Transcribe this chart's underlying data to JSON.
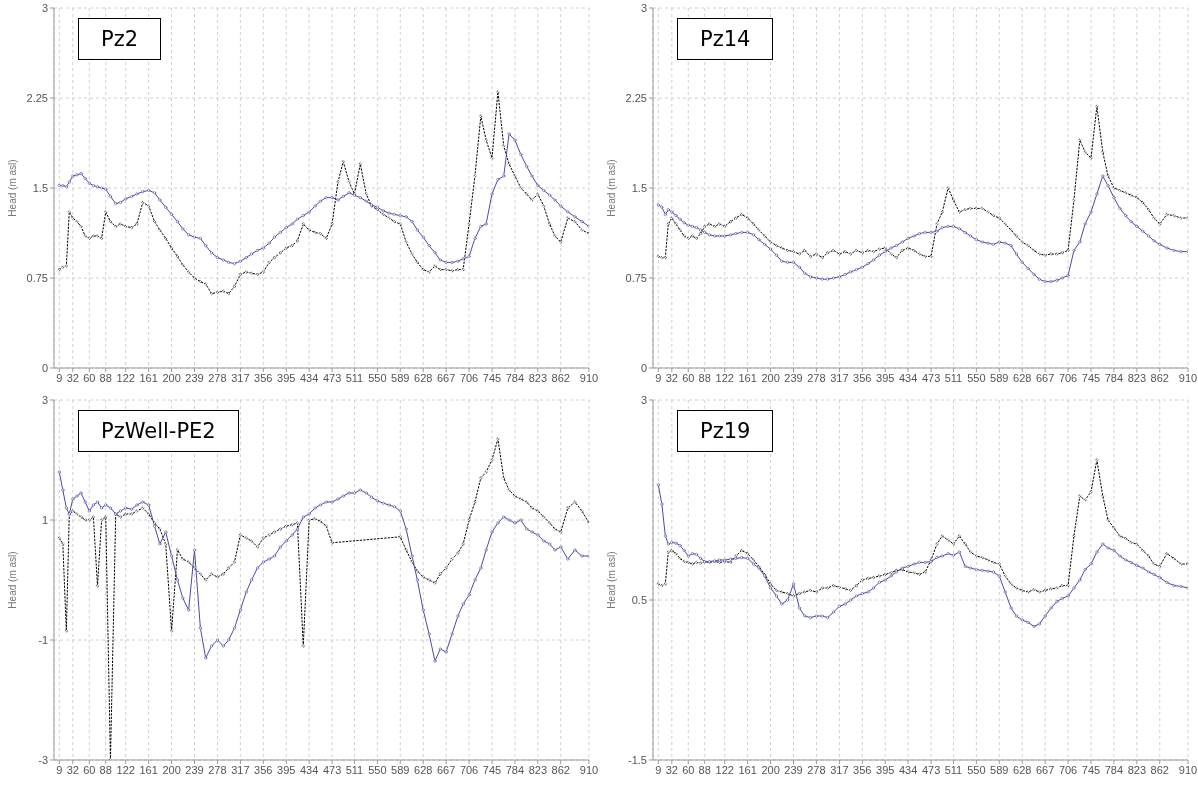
{
  "chart_data": [
    {
      "type": "line",
      "title": "Pz2",
      "ylabel": "Head (m asl)",
      "xlim": [
        0,
        910
      ],
      "xticks": [
        9,
        32,
        60,
        88,
        122,
        161,
        200,
        239,
        278,
        317,
        356,
        395,
        434,
        473,
        511,
        550,
        589,
        628,
        667,
        706,
        745,
        784,
        823,
        862,
        910
      ],
      "ylim": [
        0,
        3
      ],
      "yticks": [
        0,
        0.75,
        1.5,
        2.25,
        3
      ],
      "grid": true,
      "marker": "circle",
      "x": [
        9,
        15,
        21,
        26,
        32,
        39,
        46,
        53,
        60,
        67,
        74,
        81,
        88,
        96,
        105,
        113,
        122,
        132,
        141,
        151,
        161,
        171,
        180,
        190,
        200,
        210,
        219,
        229,
        239,
        249,
        258,
        268,
        278,
        288,
        297,
        307,
        317,
        327,
        336,
        346,
        356,
        366,
        375,
        385,
        395,
        405,
        414,
        424,
        434,
        444,
        453,
        463,
        473,
        483,
        492,
        502,
        511,
        521,
        531,
        540,
        550,
        560,
        570,
        579,
        589,
        599,
        609,
        618,
        628,
        638,
        648,
        657,
        667,
        677,
        687,
        696,
        706,
        716,
        726,
        735,
        745,
        755,
        765,
        774,
        784,
        794,
        804,
        813,
        823,
        833,
        843,
        852,
        862,
        874,
        886,
        898,
        910
      ],
      "series": [
        {
          "color": "#000000",
          "line_style": "dotted",
          "values": [
            0.82,
            0.84,
            0.85,
            1.3,
            1.25,
            1.22,
            1.18,
            1.1,
            1.08,
            1.1,
            1.1,
            1.08,
            1.3,
            1.22,
            1.18,
            1.2,
            1.18,
            1.17,
            1.2,
            1.38,
            1.35,
            1.22,
            1.15,
            1.08,
            1.0,
            0.93,
            0.86,
            0.8,
            0.75,
            0.72,
            0.7,
            0.62,
            0.63,
            0.64,
            0.62,
            0.68,
            0.78,
            0.8,
            0.79,
            0.78,
            0.8,
            0.88,
            0.92,
            0.96,
            1.0,
            1.02,
            1.06,
            1.2,
            1.15,
            1.13,
            1.12,
            1.08,
            1.2,
            1.55,
            1.72,
            1.55,
            1.45,
            1.7,
            1.45,
            1.35,
            1.32,
            1.28,
            1.25,
            1.22,
            1.2,
            1.05,
            0.95,
            0.88,
            0.82,
            0.8,
            0.85,
            0.82,
            0.82,
            0.81,
            0.82,
            0.82,
            1.2,
            1.6,
            2.1,
            1.9,
            1.75,
            2.3,
            1.85,
            1.7,
            1.6,
            1.5,
            1.45,
            1.4,
            1.45,
            1.35,
            1.2,
            1.1,
            1.05,
            1.25,
            1.22,
            1.15,
            1.12
          ]
        },
        {
          "color": "#4b4ba3",
          "line_style": "solid",
          "values": [
            1.52,
            1.52,
            1.51,
            1.55,
            1.6,
            1.61,
            1.62,
            1.58,
            1.54,
            1.52,
            1.51,
            1.5,
            1.49,
            1.43,
            1.37,
            1.38,
            1.41,
            1.43,
            1.45,
            1.47,
            1.48,
            1.46,
            1.4,
            1.34,
            1.28,
            1.22,
            1.16,
            1.11,
            1.09,
            1.08,
            1.02,
            0.96,
            0.92,
            0.9,
            0.88,
            0.87,
            0.89,
            0.92,
            0.95,
            0.98,
            1.0,
            1.04,
            1.09,
            1.13,
            1.17,
            1.2,
            1.24,
            1.27,
            1.3,
            1.35,
            1.39,
            1.42,
            1.42,
            1.4,
            1.43,
            1.46,
            1.44,
            1.42,
            1.39,
            1.36,
            1.34,
            1.31,
            1.29,
            1.28,
            1.27,
            1.26,
            1.22,
            1.15,
            1.09,
            1.02,
            0.96,
            0.9,
            0.88,
            0.88,
            0.89,
            0.91,
            0.93,
            1.08,
            1.18,
            1.2,
            1.45,
            1.57,
            1.6,
            1.95,
            1.9,
            1.78,
            1.68,
            1.6,
            1.52,
            1.48,
            1.44,
            1.4,
            1.35,
            1.3,
            1.26,
            1.22,
            1.18
          ]
        }
      ]
    },
    {
      "type": "line",
      "title": "Pz14",
      "ylabel": "Head (m asl)",
      "xlim": [
        0,
        910
      ],
      "xticks": [
        9,
        32,
        60,
        88,
        122,
        161,
        200,
        239,
        278,
        317,
        356,
        395,
        434,
        473,
        511,
        550,
        589,
        628,
        667,
        706,
        745,
        784,
        823,
        862,
        910
      ],
      "ylim": [
        0,
        3
      ],
      "yticks": [
        0,
        0.75,
        1.5,
        2.25,
        3
      ],
      "grid": true,
      "marker": "circle",
      "x": [
        9,
        15,
        21,
        26,
        32,
        39,
        46,
        53,
        60,
        67,
        74,
        81,
        88,
        96,
        105,
        113,
        122,
        132,
        141,
        151,
        161,
        171,
        180,
        190,
        200,
        210,
        219,
        229,
        239,
        249,
        258,
        268,
        278,
        288,
        297,
        307,
        317,
        327,
        336,
        346,
        356,
        366,
        375,
        385,
        395,
        405,
        414,
        424,
        434,
        444,
        453,
        463,
        473,
        483,
        492,
        502,
        511,
        521,
        531,
        540,
        550,
        560,
        570,
        579,
        589,
        599,
        609,
        618,
        628,
        638,
        648,
        657,
        667,
        677,
        687,
        696,
        706,
        716,
        726,
        735,
        745,
        755,
        765,
        774,
        784,
        794,
        804,
        813,
        823,
        833,
        843,
        852,
        862,
        874,
        886,
        898,
        910
      ],
      "series": [
        {
          "color": "#000000",
          "line_style": "dotted",
          "values": [
            0.93,
            0.92,
            0.92,
            1.2,
            1.25,
            1.2,
            1.15,
            1.1,
            1.08,
            1.1,
            1.08,
            1.12,
            1.18,
            1.2,
            1.18,
            1.2,
            1.18,
            1.22,
            1.25,
            1.28,
            1.25,
            1.2,
            1.15,
            1.1,
            1.05,
            1.02,
            1.0,
            0.98,
            0.97,
            0.95,
            0.98,
            0.93,
            0.95,
            0.92,
            0.96,
            0.98,
            0.95,
            0.97,
            0.95,
            0.98,
            0.96,
            0.98,
            0.97,
            0.99,
            1.0,
            0.95,
            0.92,
            0.98,
            1.0,
            0.98,
            0.95,
            0.93,
            0.93,
            1.2,
            1.3,
            1.5,
            1.4,
            1.3,
            1.32,
            1.33,
            1.33,
            1.33,
            1.3,
            1.27,
            1.25,
            1.2,
            1.15,
            1.1,
            1.05,
            1.02,
            0.98,
            0.95,
            0.94,
            0.95,
            0.95,
            0.96,
            0.98,
            1.4,
            1.9,
            1.8,
            1.75,
            2.18,
            1.8,
            1.6,
            1.5,
            1.48,
            1.46,
            1.44,
            1.42,
            1.38,
            1.32,
            1.25,
            1.2,
            1.28,
            1.27,
            1.25,
            1.25
          ]
        },
        {
          "color": "#4b4ba3",
          "line_style": "solid",
          "values": [
            1.36,
            1.34,
            1.28,
            1.32,
            1.3,
            1.27,
            1.24,
            1.21,
            1.19,
            1.18,
            1.17,
            1.15,
            1.13,
            1.11,
            1.1,
            1.1,
            1.1,
            1.11,
            1.12,
            1.13,
            1.13,
            1.11,
            1.07,
            1.03,
            0.99,
            0.94,
            0.89,
            0.88,
            0.88,
            0.84,
            0.79,
            0.76,
            0.75,
            0.74,
            0.74,
            0.75,
            0.76,
            0.78,
            0.8,
            0.82,
            0.84,
            0.87,
            0.9,
            0.94,
            0.97,
            1.0,
            1.02,
            1.05,
            1.08,
            1.1,
            1.12,
            1.13,
            1.13,
            1.14,
            1.17,
            1.18,
            1.18,
            1.16,
            1.13,
            1.1,
            1.07,
            1.05,
            1.04,
            1.03,
            1.05,
            1.04,
            1.02,
            0.95,
            0.88,
            0.83,
            0.78,
            0.74,
            0.72,
            0.72,
            0.73,
            0.75,
            0.77,
            0.98,
            1.05,
            1.2,
            1.3,
            1.45,
            1.6,
            1.52,
            1.42,
            1.33,
            1.27,
            1.22,
            1.18,
            1.14,
            1.1,
            1.06,
            1.03,
            1.0,
            0.98,
            0.97,
            0.97
          ]
        }
      ]
    },
    {
      "type": "line",
      "title": "PzWell-PE2",
      "ylabel": "Head (m asl)",
      "xlim": [
        0,
        910
      ],
      "xticks": [
        9,
        32,
        60,
        88,
        122,
        161,
        200,
        239,
        278,
        317,
        356,
        395,
        434,
        473,
        511,
        550,
        589,
        628,
        667,
        706,
        745,
        784,
        823,
        862,
        910
      ],
      "ylim": [
        -3,
        3
      ],
      "yticks": [
        -3,
        -1,
        1,
        3
      ],
      "grid": true,
      "marker": "circle",
      "x": [
        9,
        15,
        21,
        26,
        32,
        39,
        46,
        53,
        60,
        67,
        74,
        81,
        88,
        96,
        105,
        113,
        122,
        132,
        141,
        151,
        161,
        171,
        180,
        190,
        200,
        210,
        219,
        229,
        239,
        249,
        258,
        268,
        278,
        288,
        297,
        307,
        317,
        327,
        336,
        346,
        356,
        366,
        375,
        385,
        395,
        405,
        414,
        424,
        434,
        444,
        453,
        463,
        473,
        483,
        492,
        502,
        511,
        521,
        531,
        540,
        550,
        560,
        570,
        579,
        589,
        599,
        609,
        618,
        628,
        638,
        648,
        657,
        667,
        677,
        687,
        696,
        706,
        716,
        726,
        735,
        745,
        755,
        765,
        774,
        784,
        794,
        804,
        813,
        823,
        833,
        843,
        852,
        862,
        874,
        886,
        898,
        910
      ],
      "series": [
        {
          "color": "#000000",
          "line_style": "dotted",
          "x": [
            9,
            15,
            21,
            26,
            32,
            39,
            46,
            53,
            60,
            67,
            74,
            81,
            88,
            96,
            105,
            113,
            122,
            132,
            141,
            151,
            161,
            171,
            180,
            190,
            200,
            210,
            219,
            229,
            239,
            249,
            258,
            268,
            278,
            288,
            297,
            307,
            317,
            327,
            336,
            346,
            356,
            366,
            375,
            385,
            395,
            405,
            414,
            424,
            434,
            444,
            453,
            463,
            473,
            589,
            599,
            609,
            618,
            628,
            638,
            648,
            657,
            667,
            677,
            687,
            696,
            706,
            716,
            726,
            735,
            745,
            755,
            765,
            774,
            784,
            794,
            804,
            813,
            823,
            833,
            843,
            852,
            862,
            874,
            886,
            898,
            910
          ],
          "values": [
            0.7,
            0.6,
            -0.85,
            1.1,
            1.15,
            1.1,
            1.05,
            1.0,
            1.0,
            1.05,
            -0.1,
            1.0,
            1.05,
            -3,
            1.1,
            1.05,
            1.1,
            1.1,
            1.15,
            1.2,
            1.1,
            0.95,
            0.85,
            0.6,
            -0.85,
            0.5,
            0.35,
            0.3,
            0.2,
            0.1,
            0.0,
            0.1,
            0.05,
            0.1,
            0.2,
            0.3,
            0.75,
            0.7,
            0.65,
            0.55,
            0.7,
            0.75,
            0.8,
            0.85,
            0.9,
            0.92,
            0.95,
            -1.1,
            1.0,
            1.02,
            0.98,
            0.9,
            0.62,
            0.72,
            0.5,
            0.3,
            0.15,
            0.05,
            0.0,
            -0.05,
            0.1,
            0.2,
            0.35,
            0.45,
            0.6,
            1.0,
            1.3,
            1.7,
            1.8,
            2.0,
            2.35,
            1.7,
            1.5,
            1.4,
            1.35,
            1.3,
            1.2,
            1.15,
            1.05,
            0.95,
            0.85,
            0.8,
            1.2,
            1.3,
            1.15,
            0.95
          ]
        },
        {
          "color": "#4b4ba3",
          "line_style": "solid",
          "values": [
            1.8,
            1.5,
            1.2,
            1.1,
            1.35,
            1.4,
            1.45,
            1.3,
            1.15,
            1.25,
            1.3,
            1.2,
            1.25,
            1.2,
            1.1,
            1.15,
            1.2,
            1.18,
            1.25,
            1.3,
            1.25,
            0.9,
            0.6,
            0.8,
            0.4,
            0.0,
            -0.3,
            -0.5,
            0.5,
            -0.8,
            -1.3,
            -1.1,
            -1.0,
            -1.1,
            -1.0,
            -0.8,
            -0.5,
            -0.2,
            0.0,
            0.2,
            0.3,
            0.35,
            0.4,
            0.55,
            0.65,
            0.75,
            0.85,
            1.05,
            1.1,
            1.2,
            1.25,
            1.3,
            1.3,
            1.35,
            1.4,
            1.45,
            1.45,
            1.5,
            1.45,
            1.38,
            1.32,
            1.28,
            1.25,
            1.22,
            1.15,
            0.85,
            0.4,
            0.0,
            -0.5,
            -0.9,
            -1.35,
            -1.15,
            -1.2,
            -0.9,
            -0.6,
            -0.4,
            -0.25,
            0.0,
            0.2,
            0.5,
            0.8,
            0.95,
            1.05,
            1.0,
            0.95,
            1.0,
            0.85,
            0.8,
            0.75,
            0.65,
            0.6,
            0.5,
            0.55,
            0.35,
            0.5,
            0.4,
            0.4
          ]
        }
      ]
    },
    {
      "type": "line",
      "title": "Pz19",
      "ylabel": "Head (m asl)",
      "xlim": [
        0,
        910
      ],
      "xticks": [
        9,
        32,
        60,
        88,
        122,
        161,
        200,
        239,
        278,
        317,
        356,
        395,
        434,
        473,
        511,
        550,
        589,
        628,
        667,
        706,
        745,
        784,
        823,
        862,
        910
      ],
      "ylim": [
        -1.5,
        3
      ],
      "yticks": [
        -1.5,
        0.5,
        3
      ],
      "grid": true,
      "marker": "circle",
      "x": [
        9,
        15,
        21,
        26,
        32,
        39,
        46,
        53,
        60,
        67,
        74,
        81,
        88,
        96,
        105,
        113,
        122,
        132,
        141,
        151,
        161,
        171,
        180,
        190,
        200,
        210,
        219,
        229,
        239,
        249,
        258,
        268,
        278,
        288,
        297,
        307,
        317,
        327,
        336,
        346,
        356,
        366,
        375,
        385,
        395,
        405,
        414,
        424,
        434,
        444,
        453,
        463,
        473,
        483,
        492,
        502,
        511,
        521,
        531,
        540,
        550,
        560,
        570,
        579,
        589,
        599,
        609,
        618,
        628,
        638,
        648,
        657,
        667,
        677,
        687,
        696,
        706,
        716,
        726,
        735,
        745,
        755,
        765,
        774,
        784,
        794,
        804,
        813,
        823,
        833,
        843,
        852,
        862,
        874,
        886,
        898,
        910
      ],
      "series": [
        {
          "color": "#000000",
          "line_style": "dotted",
          "values": [
            0.7,
            0.68,
            0.7,
            1.1,
            1.12,
            1.08,
            1.02,
            0.98,
            0.97,
            0.95,
            0.97,
            0.96,
            0.98,
            0.97,
            0.98,
            0.97,
            0.98,
            0.97,
            1.05,
            1.12,
            1.08,
            1.0,
            0.92,
            0.82,
            0.7,
            0.62,
            0.6,
            0.58,
            0.55,
            0.58,
            0.6,
            0.62,
            0.6,
            0.65,
            0.65,
            0.68,
            0.66,
            0.64,
            0.62,
            0.68,
            0.75,
            0.77,
            0.78,
            0.8,
            0.82,
            0.84,
            0.87,
            0.88,
            0.85,
            0.84,
            0.82,
            0.85,
            1.0,
            1.2,
            1.3,
            1.25,
            1.2,
            1.3,
            1.2,
            1.1,
            1.05,
            1.03,
            1.0,
            0.97,
            0.95,
            0.8,
            0.7,
            0.65,
            0.62,
            0.6,
            0.63,
            0.6,
            0.62,
            0.64,
            0.65,
            0.68,
            0.68,
            1.3,
            1.8,
            1.75,
            1.85,
            2.25,
            1.8,
            1.5,
            1.4,
            1.3,
            1.27,
            1.22,
            1.2,
            1.12,
            1.05,
            0.95,
            0.92,
            1.08,
            1.02,
            0.95,
            0.95
          ]
        },
        {
          "color": "#4b4ba3",
          "line_style": "solid",
          "values": [
            1.94,
            1.7,
            1.3,
            1.2,
            1.22,
            1.21,
            1.18,
            1.12,
            1.05,
            1.08,
            1.07,
            1.02,
            0.98,
            0.98,
            0.99,
            1.0,
            1.0,
            1.01,
            1.02,
            1.03,
            1.02,
            0.95,
            0.9,
            0.8,
            0.65,
            0.55,
            0.45,
            0.5,
            0.7,
            0.4,
            0.3,
            0.28,
            0.3,
            0.3,
            0.28,
            0.35,
            0.42,
            0.45,
            0.5,
            0.55,
            0.58,
            0.6,
            0.65,
            0.72,
            0.75,
            0.8,
            0.85,
            0.9,
            0.92,
            0.95,
            0.97,
            0.97,
            0.98,
            1.03,
            1.05,
            1.08,
            1.06,
            1.1,
            0.92,
            0.9,
            0.88,
            0.87,
            0.86,
            0.85,
            0.8,
            0.6,
            0.4,
            0.3,
            0.25,
            0.22,
            0.17,
            0.2,
            0.3,
            0.4,
            0.48,
            0.52,
            0.55,
            0.65,
            0.75,
            0.88,
            0.95,
            1.1,
            1.2,
            1.15,
            1.12,
            1.05,
            1.0,
            0.97,
            0.93,
            0.9,
            0.85,
            0.82,
            0.78,
            0.72,
            0.68,
            0.67,
            0.65
          ]
        }
      ]
    }
  ]
}
